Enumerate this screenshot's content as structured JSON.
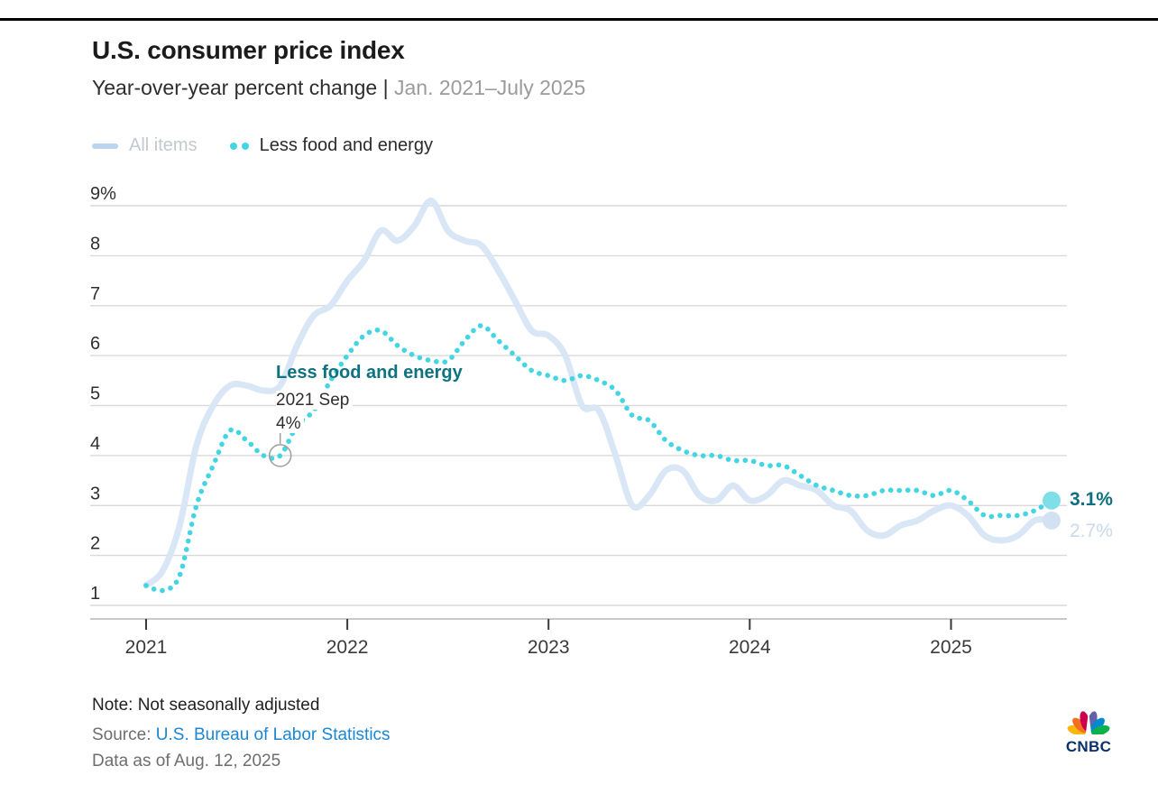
{
  "header": {
    "title": "U.S. consumer price index",
    "subtitle_main": "Year-over-year percent change | ",
    "subtitle_range": "Jan. 2021–July 2025"
  },
  "legend": {
    "all_items_label": "All items",
    "core_label": "Less food and energy"
  },
  "annotation": {
    "heading": "Less food and energy",
    "date": "2021 Sep",
    "value": "4%"
  },
  "end_labels": {
    "core": "3.1%",
    "all_items": "2.7%"
  },
  "footer": {
    "note": "Note: Not seasonally adjusted",
    "source_prefix": "Source: ",
    "source_link": "U.S. Bureau of Labor Statistics",
    "data_as_of": "Data as of Aug. 12, 2025"
  },
  "logo": {
    "wordmark": "CNBC"
  },
  "colors": {
    "all_items_line": "#d9e6f5",
    "all_items_legend_swatch": "#b9d5f0",
    "core_dots": "#44d5e2",
    "core_end_dot": "#7fdfe9",
    "all_items_end_dot": "#d3e2f3",
    "annotation_teal": "#0e7381",
    "end_label_core": "#0d6f7f",
    "end_label_all_items": "#c9daec",
    "link_blue": "#1b87d2",
    "gridline": "#d9d9d9",
    "axis_line": "#c9c9c9",
    "tick": "#3a3a3a"
  },
  "chart_data": {
    "type": "line",
    "title": "U.S. consumer price index",
    "subtitle": "Year-over-year percent change | Jan. 2021–July 2025",
    "x_frequency": "monthly",
    "x_start": "2021-01",
    "x_end": "2025-07",
    "x_tick_labels": [
      "2021",
      "2022",
      "2023",
      "2024",
      "2025"
    ],
    "y_ticks": [
      {
        "value": 9,
        "label": "9%"
      },
      {
        "value": 8,
        "label": "8"
      },
      {
        "value": 7,
        "label": "7"
      },
      {
        "value": 6,
        "label": "6"
      },
      {
        "value": 5,
        "label": "5"
      },
      {
        "value": 4,
        "label": "4"
      },
      {
        "value": 3,
        "label": "3"
      },
      {
        "value": 2,
        "label": "2"
      },
      {
        "value": 1,
        "label": "1"
      }
    ],
    "ylim": [
      1,
      9
    ],
    "grid": true,
    "legend_position": "top-left",
    "series": [
      {
        "name": "All items",
        "style": "solid",
        "color": "#d9e6f5",
        "values": [
          1.4,
          1.7,
          2.6,
          4.2,
          5.0,
          5.4,
          5.4,
          5.3,
          5.4,
          6.2,
          6.8,
          7.0,
          7.5,
          7.9,
          8.5,
          8.3,
          8.6,
          9.1,
          8.5,
          8.3,
          8.2,
          7.7,
          7.1,
          6.5,
          6.4,
          6.0,
          5.0,
          4.9,
          4.0,
          3.0,
          3.2,
          3.7,
          3.7,
          3.2,
          3.1,
          3.4,
          3.1,
          3.2,
          3.5,
          3.4,
          3.3,
          3.0,
          2.9,
          2.5,
          2.4,
          2.6,
          2.7,
          2.9,
          3.0,
          2.8,
          2.4,
          2.3,
          2.4,
          2.7,
          2.7
        ]
      },
      {
        "name": "Less food and energy",
        "style": "dotted",
        "color": "#44d5e2",
        "values": [
          1.4,
          1.3,
          1.6,
          3.0,
          3.8,
          4.5,
          4.3,
          4.0,
          4.0,
          4.6,
          4.9,
          5.5,
          6.0,
          6.4,
          6.5,
          6.2,
          6.0,
          5.9,
          5.9,
          6.3,
          6.6,
          6.3,
          6.0,
          5.7,
          5.6,
          5.5,
          5.6,
          5.5,
          5.3,
          4.8,
          4.7,
          4.3,
          4.1,
          4.0,
          4.0,
          3.9,
          3.9,
          3.8,
          3.8,
          3.6,
          3.4,
          3.3,
          3.2,
          3.2,
          3.3,
          3.3,
          3.3,
          3.2,
          3.3,
          3.1,
          2.8,
          2.8,
          2.8,
          2.9,
          3.1
        ]
      }
    ],
    "annotation_point": {
      "series": "Less food and energy",
      "x": "2021-09",
      "value": 4.0
    },
    "end_values": {
      "Less food and energy": 3.1,
      "All items": 2.7
    }
  }
}
